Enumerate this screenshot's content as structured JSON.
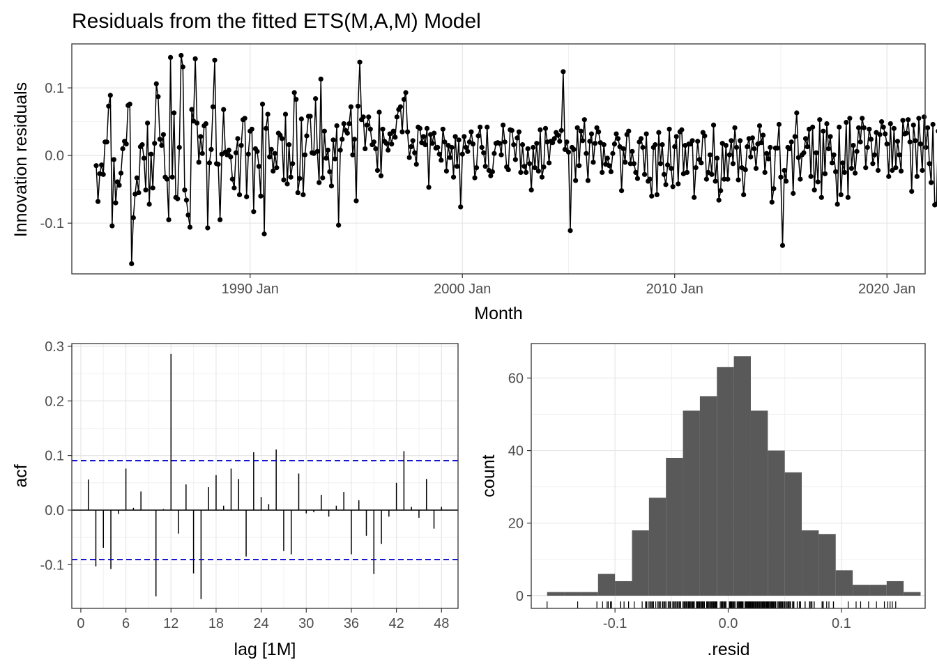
{
  "title": "Residuals from the fitted ETS(M,A,M) Model",
  "chart_data": [
    {
      "type": "line",
      "name": "innovation-residuals-time-series",
      "xlabel": "Month",
      "ylabel": "Innovation residuals",
      "xticks": [
        {
          "value": 1990,
          "label": "1990 Jan"
        },
        {
          "value": 2000,
          "label": "2000 Jan"
        },
        {
          "value": 2010,
          "label": "2010 Jan"
        },
        {
          "value": 2020,
          "label": "2020 Jan"
        }
      ],
      "yticks": [
        {
          "value": -0.1,
          "label": "-0.1"
        },
        {
          "value": 0.0,
          "label": "0.0"
        },
        {
          "value": 0.1,
          "label": "0.1"
        }
      ],
      "xlim": [
        1981.6,
        2021.8
      ],
      "ylim": [
        -0.175,
        0.165
      ],
      "grid": true,
      "x_start": 1982.75,
      "x_step_months": 1,
      "values": [
        -0.015,
        -0.068,
        -0.027,
        -0.014,
        -0.028,
        0.02,
        0.02,
        0.073,
        0.089,
        -0.104,
        -0.006,
        -0.07,
        -0.039,
        -0.044,
        -0.026,
        0.01,
        0.021,
        0.017,
        0.074,
        0.076,
        -0.16,
        -0.092,
        -0.057,
        -0.033,
        -0.055,
        0.013,
        0.016,
        -0.004,
        -0.051,
        0.048,
        -0.072,
        0.002,
        -0.048,
        0.018,
        0.106,
        0.087,
        0.024,
        0.015,
        0.031,
        -0.032,
        -0.035,
        -0.095,
        0.145,
        -0.032,
        0.063,
        -0.062,
        -0.064,
        0.012,
        0.148,
        0.131,
        -0.051,
        -0.066,
        -0.088,
        -0.106,
        0.068,
        0.051,
        0.143,
        0.048,
        -0.01,
        0.028,
        0.003,
        0.044,
        0.047,
        -0.107,
        -0.011,
        0.009,
        0.072,
        0.141,
        -0.012,
        -0.013,
        -0.095,
        0.002,
        0.068,
        0.005,
        0.001,
        0.008,
        -0.002,
        -0.035,
        -0.048,
        0.004,
        0.025,
        -0.058,
        0.015,
        0.053,
        0.055,
        -0.061,
        0.002,
        0.036,
        0.039,
        -0.083,
        0.01,
        0.006,
        -0.016,
        -0.06,
        0.076,
        -0.116,
        0.04,
        0.061,
        -0.002,
        0.009,
        -0.023,
        0.003,
        -0.018,
        0.033,
        0.03,
        0.025,
        -0.036,
        0.061,
        -0.042,
        0.016,
        -0.032,
        -0.012,
        0.093,
        0.083,
        -0.055,
        -0.034,
        0.054,
        -0.058,
        0.001,
        0.029,
        0.058,
        0.058,
        0.004,
        0.003,
        0.084,
        0.006,
        -0.04,
        0.113,
        -0.033,
        0.036,
        -0.004,
        0.008,
        -0.024,
        -0.045,
        0.023,
        -0.005,
        0.044,
        -0.103,
        0.008,
        0.024,
        0.047,
        0.037,
        0.033,
        0.047,
        0.072,
        0.001,
        0.024,
        -0.067,
        0.073,
        0.138,
        0.053,
        0.057,
        0.01,
        0.045,
        0.057,
        0.039,
        0.016,
        0.02,
        0.01,
        -0.022,
        0.064,
        -0.03,
        0.039,
        0.021,
        0.018,
        0.008,
        0.032,
        0.017,
        0.036,
        0.027,
        0.057,
        0.068,
        0.072,
        0.035,
        0.083,
        0.093,
        0.035,
        -0.003,
        0.013,
        0.022,
        0.004,
        -0.013,
        0.042,
        0.04,
        0.019,
        0.028,
        0.016,
        0.04,
        -0.047,
        0.031,
        0.018,
        0.033,
        0.011,
        0.012,
        0.002,
        -0.007,
        0.039,
        0.02,
        -0.023,
        0.015,
        -0.003,
        0.012,
        -0.032,
        0.028,
        -0.016,
        0.023,
        -0.076,
        0.002,
        0.028,
        0.012,
        0.006,
        0.02,
        0.035,
        0.017,
        -0.033,
        -0.018,
        0.029,
        0.042,
        0.012,
        0.004,
        -0.016,
        0.042,
        -0.022,
        -0.03,
        -0.024,
        0.003,
        0.018,
        0.019,
        0.018,
        0.001,
        0.045,
        0.02,
        -0.017,
        -0.021,
        0.038,
        0.037,
        0.016,
        -0.006,
        0.026,
        0.035,
        -0.025,
        0.016,
        -0.016,
        -0.025,
        0.01,
        -0.012,
        -0.051,
        0.012,
        -0.018,
        0.018,
        -0.023,
        0.038,
        -0.032,
        -0.017,
        0.04,
        0.02,
        -0.011,
        0.021,
        0.019,
        0.025,
        0.034,
        0.03,
        0.021,
        0.037,
        0.124,
        0.009,
        0.02,
        0.005,
        -0.111,
        0.012,
        0.009,
        -0.037,
        0.041,
        -0.015,
        0.036,
        0.022,
        0.053,
        0.003,
        -0.037,
        0.021,
        0.032,
        -0.01,
        0.018,
        0.041,
        0.035,
        0.019,
        -0.025,
        0.016,
        -0.013,
        -0.004,
        -0.015,
        -0.024,
        0.003,
        0.017,
        0.032,
        0.025,
        0.013,
        -0.052,
        0.01,
        -0.01,
        0.031,
        0.036,
        -0.012,
        0.006,
        -0.012,
        -0.025,
        -0.034,
        0.02,
        0.025,
        0.012,
        -0.028,
        0.032,
        -0.038,
        -0.035,
        -0.06,
        0.012,
        0.016,
        -0.058,
        0.034,
        -0.012,
        0.016,
        -0.028,
        -0.043,
        -0.014,
        0.039,
        -0.019,
        -0.046,
        0.013,
        0.028,
        -0.042,
        0.035,
        0.038,
        -0.027,
        0.015,
        -0.025,
        0.017,
        0.017,
        0.022,
        -0.062,
        -0.018,
        0.021,
        -0.006,
        -0.011,
        0.034,
        0.029,
        -0.035,
        -0.025,
        0.001,
        -0.028,
        0.045,
        -0.038,
        -0.004,
        -0.066,
        -0.052,
        0.018,
        -0.035,
        0.015,
        -0.035,
        0.001,
        0.022,
        -0.012,
        0.041,
        0.012,
        -0.036,
        0.022,
        -0.018,
        -0.058,
        -0.021,
        0.013,
        0.025,
        -0.002,
        0.026,
        0.01,
        -0.019,
        0.017,
        0.044,
        0.019,
        0.03,
        -0.025,
        0.003,
        -0.005,
        0.012,
        -0.069,
        -0.049,
        0.011,
        0.011,
        0.046,
        -0.032,
        -0.133,
        -0.022,
        -0.038,
        0.012,
        0.01,
        0.02,
        -0.056,
        0.028,
        0.063,
        -0.003,
        -0.035,
        0.001,
        0.004,
        0.025,
        0.013,
        0.039,
        -0.031,
        0.042,
        -0.051,
        0.004,
        -0.039,
        0.053,
        -0.062,
        0.036,
        -0.027,
        0.047,
        0.01,
        0.028,
        -0.011,
        0.001,
        -0.024,
        -0.072,
        0.042,
        -0.058,
        -0.011,
        -0.025,
        0.049,
        -0.062,
        0.055,
        -0.019,
        0.015,
        -0.026,
        0.006,
        0.041,
        0.02,
        0.055,
        0.041,
        -0.018,
        0.012,
        0.039,
        0.024,
        -0.012,
        0.001,
        0.034,
        -0.022,
        0.031,
        0.05,
        0.042,
        0.032,
        0.017,
        -0.031,
        0.047,
        -0.022,
        0.04,
        -0.018,
        0.021,
        0.001,
        -0.023,
        0.052,
        0.032,
        0.033,
        0.053,
        0.02,
        -0.053,
        0.045,
        0.022,
        -0.031,
        0.055,
        0.017,
        -0.022,
        0.057,
        0.012,
        0.041,
        -0.012,
        -0.04,
        0.046,
        -0.073,
        -0.072,
        0.036,
        0.035,
        0.015,
        0.076,
        0.033,
        0.117,
        0.024,
        -0.073,
        0.039,
        0.076,
        -0.022,
        0.044,
        0.027,
        0.049,
        -0.002
      ]
    },
    {
      "type": "bar",
      "name": "acf",
      "xlabel": "lag [1M]",
      "ylabel": "acf",
      "xticks": [
        0,
        6,
        12,
        18,
        24,
        30,
        36,
        42,
        48
      ],
      "yticks": [
        -0.1,
        0.0,
        0.1,
        0.2,
        0.3
      ],
      "xlim": [
        -1.2,
        50.2
      ],
      "ylim": [
        -0.18,
        0.305
      ],
      "grid": true,
      "confidence_bound": 0.0905,
      "confidence_color": "#0000cc",
      "lags": [
        1,
        2,
        3,
        4,
        5,
        6,
        7,
        8,
        9,
        10,
        11,
        12,
        13,
        14,
        15,
        16,
        17,
        18,
        19,
        20,
        21,
        22,
        23,
        24,
        25,
        26,
        27,
        28,
        29,
        30,
        31,
        32,
        33,
        34,
        35,
        36,
        37,
        38,
        39,
        40,
        41,
        42,
        43,
        44,
        45,
        46,
        47,
        48
      ],
      "values": [
        0.056,
        -0.103,
        -0.069,
        -0.108,
        -0.007,
        0.076,
        0.004,
        0.034,
        0.0,
        -0.158,
        0.002,
        0.286,
        -0.043,
        0.047,
        -0.116,
        -0.163,
        0.042,
        0.064,
        0.008,
        0.076,
        0.057,
        -0.085,
        0.106,
        0.024,
        0.011,
        0.111,
        -0.075,
        -0.081,
        0.067,
        -0.006,
        -0.004,
        0.028,
        -0.012,
        0.008,
        0.033,
        -0.081,
        0.018,
        -0.047,
        -0.117,
        -0.062,
        -0.012,
        0.05,
        0.108,
        0.006,
        -0.014,
        0.057,
        -0.034,
        0.006
      ]
    },
    {
      "type": "histogram",
      "name": "residual-distribution",
      "xlabel": ".resid",
      "ylabel": "count",
      "xticks": [
        -0.1,
        0.0,
        0.1
      ],
      "yticks": [
        0,
        20,
        40,
        60
      ],
      "xlim": [
        -0.174,
        0.174
      ],
      "ylim": [
        -3.5,
        69.5
      ],
      "grid": true,
      "bar_color": "#595959",
      "bins": [
        {
          "x0": -0.16,
          "x1": -0.145,
          "count": 1
        },
        {
          "x0": -0.145,
          "x1": -0.13,
          "count": 1
        },
        {
          "x0": -0.13,
          "x1": -0.115,
          "count": 1
        },
        {
          "x0": -0.115,
          "x1": -0.1,
          "count": 6
        },
        {
          "x0": -0.1,
          "x1": -0.085,
          "count": 4
        },
        {
          "x0": -0.085,
          "x1": -0.07,
          "count": 18
        },
        {
          "x0": -0.07,
          "x1": -0.055,
          "count": 27
        },
        {
          "x0": -0.055,
          "x1": -0.04,
          "count": 38
        },
        {
          "x0": -0.04,
          "x1": -0.025,
          "count": 51
        },
        {
          "x0": -0.025,
          "x1": -0.01,
          "count": 55
        },
        {
          "x0": -0.01,
          "x1": 0.005,
          "count": 63
        },
        {
          "x0": 0.005,
          "x1": 0.02,
          "count": 66
        },
        {
          "x0": 0.02,
          "x1": 0.035,
          "count": 51
        },
        {
          "x0": 0.035,
          "x1": 0.05,
          "count": 40
        },
        {
          "x0": 0.05,
          "x1": 0.065,
          "count": 34
        },
        {
          "x0": 0.065,
          "x1": 0.08,
          "count": 18
        },
        {
          "x0": 0.08,
          "x1": 0.095,
          "count": 17
        },
        {
          "x0": 0.095,
          "x1": 0.11,
          "count": 7
        },
        {
          "x0": 0.11,
          "x1": 0.125,
          "count": 3
        },
        {
          "x0": 0.125,
          "x1": 0.14,
          "count": 3
        },
        {
          "x0": 0.14,
          "x1": 0.155,
          "count": 4
        },
        {
          "x0": 0.155,
          "x1": 0.17,
          "count": 1
        }
      ],
      "rug": true
    }
  ]
}
